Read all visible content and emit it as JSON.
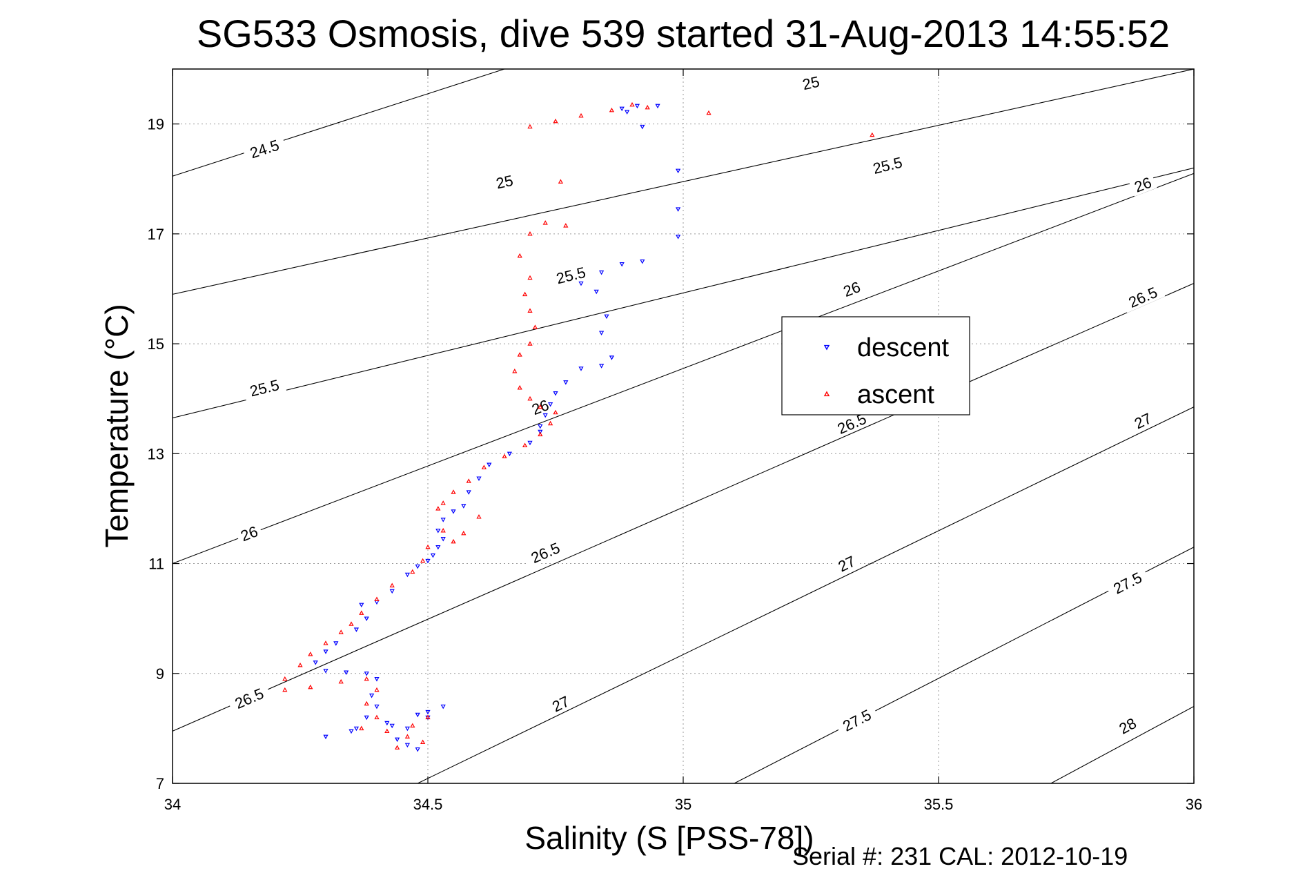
{
  "chart_data": {
    "type": "scatter",
    "title": "SG533 Osmosis, dive 539 started 31-Aug-2013 14:55:52",
    "xlabel": "Salinity (S [PSS-78])",
    "ylabel": "Temperature (°C)",
    "xlim": [
      34,
      36
    ],
    "ylim": [
      7,
      20
    ],
    "xticks": [
      34,
      34.5,
      35,
      35.5,
      36
    ],
    "xtick_labels": [
      "34",
      "34.5",
      "35",
      "35.5",
      "36"
    ],
    "yticks": [
      7,
      9,
      11,
      13,
      15,
      17,
      19
    ],
    "ytick_labels": [
      "7",
      "9",
      "11",
      "13",
      "15",
      "17",
      "19"
    ],
    "grid": true,
    "legend_position": "right",
    "footer": "Serial #: 231  CAL: 2012-10-19",
    "contours": {
      "label_text": {
        "24.5": "24.5",
        "25": "25",
        "25.5": "25.5",
        "26": "26",
        "26.5": "26.5",
        "27": "27",
        "27.5": "27.5",
        "28": "28"
      },
      "levels": [
        {
          "level": 24.5,
          "line": [
            [
              34,
              18.05
            ],
            [
              34.65,
              20.0
            ]
          ],
          "labels": [
            [
              34.18,
              18.55,
              "24.5"
            ]
          ]
        },
        {
          "level": 25,
          "line": [
            [
              34,
              15.9
            ],
            [
              36,
              20.0
            ]
          ],
          "labels": [
            [
              34.65,
              17.95,
              "25"
            ],
            [
              35.25,
              19.75,
              "25"
            ]
          ]
        },
        {
          "level": 25.5,
          "line": [
            [
              34,
              13.65
            ],
            [
              36,
              18.2
            ]
          ],
          "labels": [
            [
              34.18,
              14.2,
              "25.5"
            ],
            [
              34.78,
              16.25,
              "25.5"
            ],
            [
              35.4,
              18.25,
              "25.5"
            ]
          ]
        },
        {
          "level": 26,
          "line": [
            [
              34,
              11.0
            ],
            [
              36,
              18.1
            ]
          ],
          "labels": [
            [
              34.15,
              11.55,
              "26"
            ],
            [
              34.72,
              13.85,
              "26"
            ],
            [
              35.33,
              16.0,
              "26"
            ],
            [
              35.9,
              17.9,
              "26"
            ]
          ]
        },
        {
          "level": 26.5,
          "line": [
            [
              34,
              7.95
            ],
            [
              36,
              16.1
            ]
          ],
          "labels": [
            [
              34.15,
              8.55,
              "26.5"
            ],
            [
              34.73,
              11.2,
              "26.5"
            ],
            [
              35.33,
              13.55,
              "26.5"
            ],
            [
              35.9,
              15.85,
              "26.5"
            ]
          ]
        },
        {
          "level": 27,
          "line": [
            [
              34.48,
              7.0
            ],
            [
              36,
              13.85
            ]
          ],
          "labels": [
            [
              34.76,
              8.45,
              "27"
            ],
            [
              35.32,
              11.0,
              "27"
            ],
            [
              35.9,
              13.6,
              "27"
            ]
          ]
        },
        {
          "level": 27.5,
          "line": [
            [
              35.1,
              7.0
            ],
            [
              36,
              11.3
            ]
          ],
          "labels": [
            [
              35.34,
              8.15,
              "27.5"
            ],
            [
              35.87,
              10.65,
              "27.5"
            ]
          ]
        },
        {
          "level": 28,
          "line": [
            [
              35.72,
              7.0
            ],
            [
              36,
              8.4
            ]
          ],
          "labels": [
            [
              35.87,
              8.05,
              "28"
            ]
          ]
        }
      ]
    },
    "series": [
      {
        "name": "descent",
        "color": "#0000ff",
        "marker": "triangle-down",
        "points": [
          [
            34.88,
            19.28
          ],
          [
            34.91,
            19.33
          ],
          [
            34.95,
            19.33
          ],
          [
            34.89,
            19.22
          ],
          [
            34.92,
            18.95
          ],
          [
            34.99,
            18.15
          ],
          [
            34.99,
            17.45
          ],
          [
            34.99,
            16.95
          ],
          [
            34.92,
            16.5
          ],
          [
            34.88,
            16.45
          ],
          [
            34.84,
            16.3
          ],
          [
            34.8,
            16.1
          ],
          [
            34.83,
            15.95
          ],
          [
            34.85,
            15.5
          ],
          [
            34.84,
            15.2
          ],
          [
            34.86,
            14.75
          ],
          [
            34.84,
            14.6
          ],
          [
            34.8,
            14.55
          ],
          [
            34.77,
            14.3
          ],
          [
            34.75,
            14.1
          ],
          [
            34.74,
            13.9
          ],
          [
            34.73,
            13.7
          ],
          [
            34.72,
            13.5
          ],
          [
            34.72,
            13.4
          ],
          [
            34.7,
            13.2
          ],
          [
            34.66,
            13.0
          ],
          [
            34.62,
            12.8
          ],
          [
            34.6,
            12.55
          ],
          [
            34.58,
            12.3
          ],
          [
            34.57,
            12.05
          ],
          [
            34.55,
            11.95
          ],
          [
            34.53,
            11.8
          ],
          [
            34.52,
            11.6
          ],
          [
            34.53,
            11.45
          ],
          [
            34.52,
            11.3
          ],
          [
            34.51,
            11.15
          ],
          [
            34.5,
            11.05
          ],
          [
            34.48,
            10.95
          ],
          [
            34.46,
            10.8
          ],
          [
            34.43,
            10.5
          ],
          [
            34.4,
            10.3
          ],
          [
            34.37,
            10.25
          ],
          [
            34.38,
            10.0
          ],
          [
            34.36,
            9.8
          ],
          [
            34.32,
            9.55
          ],
          [
            34.3,
            9.4
          ],
          [
            34.28,
            9.2
          ],
          [
            34.3,
            9.05
          ],
          [
            34.34,
            9.02
          ],
          [
            34.38,
            9.0
          ],
          [
            34.4,
            8.9
          ],
          [
            34.39,
            8.6
          ],
          [
            34.4,
            8.4
          ],
          [
            34.38,
            8.2
          ],
          [
            34.36,
            8.0
          ],
          [
            34.3,
            7.85
          ],
          [
            34.35,
            7.95
          ],
          [
            34.43,
            8.05
          ],
          [
            34.48,
            8.25
          ],
          [
            34.53,
            8.4
          ],
          [
            34.5,
            8.2
          ],
          [
            34.46,
            8.0
          ],
          [
            34.44,
            7.8
          ],
          [
            34.46,
            7.7
          ],
          [
            34.48,
            7.62
          ],
          [
            34.42,
            8.1
          ],
          [
            34.5,
            8.3
          ]
        ]
      },
      {
        "name": "ascent",
        "color": "#ff0000",
        "marker": "triangle-up",
        "points": [
          [
            34.7,
            18.95
          ],
          [
            34.75,
            19.05
          ],
          [
            34.8,
            19.15
          ],
          [
            34.86,
            19.25
          ],
          [
            34.9,
            19.35
          ],
          [
            34.93,
            19.3
          ],
          [
            35.05,
            19.2
          ],
          [
            35.37,
            18.8
          ],
          [
            34.76,
            17.95
          ],
          [
            34.77,
            17.15
          ],
          [
            34.73,
            17.2
          ],
          [
            34.7,
            17.0
          ],
          [
            34.68,
            16.6
          ],
          [
            34.7,
            16.2
          ],
          [
            34.69,
            15.9
          ],
          [
            34.7,
            15.6
          ],
          [
            34.71,
            15.3
          ],
          [
            34.7,
            15.0
          ],
          [
            34.68,
            14.8
          ],
          [
            34.67,
            14.5
          ],
          [
            34.68,
            14.2
          ],
          [
            34.7,
            14.0
          ],
          [
            34.72,
            13.85
          ],
          [
            34.75,
            13.75
          ],
          [
            34.74,
            13.55
          ],
          [
            34.72,
            13.35
          ],
          [
            34.69,
            13.15
          ],
          [
            34.65,
            12.95
          ],
          [
            34.61,
            12.75
          ],
          [
            34.58,
            12.5
          ],
          [
            34.55,
            12.3
          ],
          [
            34.53,
            12.1
          ],
          [
            34.52,
            12.0
          ],
          [
            34.6,
            11.85
          ],
          [
            34.57,
            11.55
          ],
          [
            34.55,
            11.4
          ],
          [
            34.53,
            11.6
          ],
          [
            34.5,
            11.3
          ],
          [
            34.49,
            11.05
          ],
          [
            34.47,
            10.85
          ],
          [
            34.43,
            10.6
          ],
          [
            34.4,
            10.35
          ],
          [
            34.37,
            10.1
          ],
          [
            34.35,
            9.9
          ],
          [
            34.33,
            9.75
          ],
          [
            34.3,
            9.55
          ],
          [
            34.27,
            9.35
          ],
          [
            34.25,
            9.15
          ],
          [
            34.22,
            8.9
          ],
          [
            34.22,
            8.7
          ],
          [
            34.27,
            8.75
          ],
          [
            34.33,
            8.85
          ],
          [
            34.38,
            8.9
          ],
          [
            34.4,
            8.7
          ],
          [
            34.38,
            8.45
          ],
          [
            34.4,
            8.2
          ],
          [
            34.37,
            8.0
          ],
          [
            34.42,
            7.95
          ],
          [
            34.47,
            8.05
          ],
          [
            34.5,
            8.2
          ],
          [
            34.46,
            7.85
          ],
          [
            34.44,
            7.65
          ],
          [
            34.49,
            7.75
          ]
        ]
      }
    ]
  }
}
